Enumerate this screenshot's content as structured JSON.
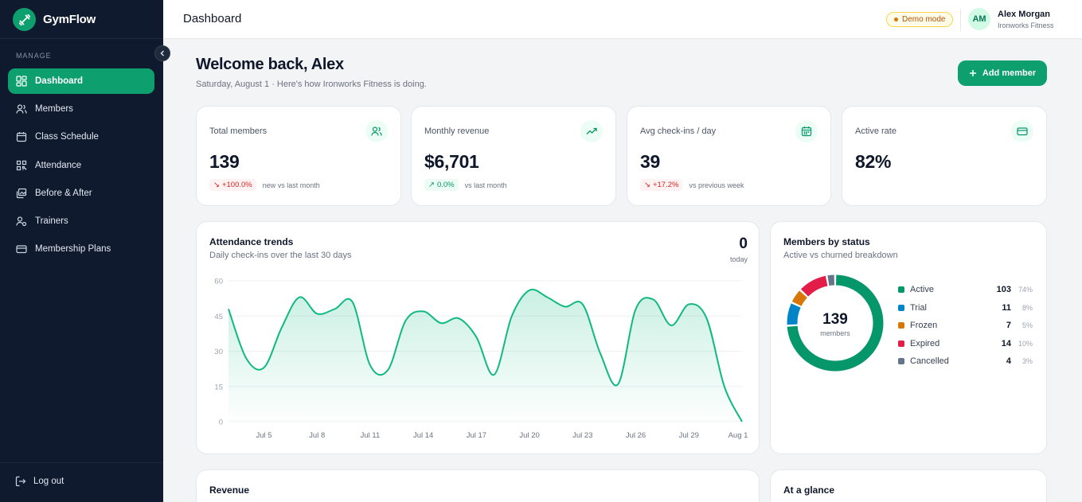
{
  "sidebar": {
    "brand": "GymFlow",
    "section_label": "MANAGE",
    "items": [
      {
        "label": "Dashboard",
        "icon": "dashboard-icon",
        "active": true
      },
      {
        "label": "Members",
        "icon": "users-icon",
        "active": false
      },
      {
        "label": "Class Schedule",
        "icon": "calendar-icon",
        "active": false
      },
      {
        "label": "Attendance",
        "icon": "qr-code-icon",
        "active": false
      },
      {
        "label": "Before & After",
        "icon": "images-icon",
        "active": false
      },
      {
        "label": "Trainers",
        "icon": "trainer-icon",
        "active": false
      },
      {
        "label": "Membership Plans",
        "icon": "credit-card-icon",
        "active": false
      }
    ],
    "logout_label": "Log out"
  },
  "header": {
    "title": "Dashboard",
    "demo_badge": "Demo mode",
    "user_initials": "AM",
    "user_name": "Alex Morgan",
    "user_org": "Ironworks Fitness"
  },
  "main": {
    "welcome": "Welcome back, Alex",
    "subtitle": "Saturday, August 1 · Here's how Ironworks Fitness is doing.",
    "add_member_label": "Add member"
  },
  "stats": [
    {
      "label": "Total members",
      "value": "139",
      "delta": "+100.0%",
      "direction": "down",
      "note": "new vs last month",
      "icon": "users-icon"
    },
    {
      "label": "Monthly revenue",
      "value": "$6,701",
      "delta": "0.0%",
      "direction": "up",
      "note": "vs last month",
      "icon": "trending-up-icon"
    },
    {
      "label": "Avg check-ins / day",
      "value": "39",
      "delta": "+17.2%",
      "direction": "down",
      "note": "vs previous week",
      "icon": "calendar-icon"
    },
    {
      "label": "Active rate",
      "value": "82%",
      "icon": "credit-card-icon"
    }
  ],
  "attendance": {
    "title": "Attendance trends",
    "subtitle": "Daily check-ins over the last 30 days",
    "today_value": "0",
    "today_label": "today"
  },
  "status": {
    "title": "Members by status",
    "subtitle": "Active vs churned breakdown",
    "total": "139",
    "total_label": "members"
  },
  "bottom": {
    "revenue_title": "Revenue",
    "glance_title": "At a glance"
  },
  "colors": {
    "brand": "#0e9f6e",
    "sidebar": "#0f1a2e",
    "active": "#059669",
    "trial": "#0284c7",
    "frozen": "#d97706",
    "expired": "#e11d48",
    "cancelled": "#64748b"
  },
  "chart_data": [
    {
      "type": "area",
      "x": [
        "Jul 3",
        "Jul 4",
        "Jul 5",
        "Jul 6",
        "Jul 7",
        "Jul 8",
        "Jul 9",
        "Jul 10",
        "Jul 11",
        "Jul 12",
        "Jul 13",
        "Jul 14",
        "Jul 15",
        "Jul 16",
        "Jul 17",
        "Jul 18",
        "Jul 19",
        "Jul 20",
        "Jul 21",
        "Jul 22",
        "Jul 23",
        "Jul 24",
        "Jul 25",
        "Jul 26",
        "Jul 27",
        "Jul 28",
        "Jul 29",
        "Jul 30",
        "Jul 31",
        "Aug 1"
      ],
      "values": [
        48,
        27,
        23,
        40,
        53,
        46,
        48,
        51,
        24,
        22,
        43,
        47,
        42,
        44,
        36,
        20,
        45,
        56,
        53,
        49,
        50,
        29,
        16,
        48,
        52,
        41,
        50,
        44,
        15,
        0
      ],
      "x_tick_labels": [
        "Jul 5",
        "Jul 8",
        "Jul 11",
        "Jul 14",
        "Jul 17",
        "Jul 20",
        "Jul 23",
        "Jul 26",
        "Jul 29",
        "Aug 1"
      ],
      "y_ticks": [
        0,
        15,
        30,
        45,
        60
      ],
      "ylim": [
        0,
        60
      ],
      "grid": true
    },
    {
      "type": "pie",
      "categories": [
        "Active",
        "Trial",
        "Frozen",
        "Expired",
        "Cancelled"
      ],
      "values": [
        103,
        11,
        7,
        14,
        4
      ],
      "percent_labels": [
        "74%",
        "8%",
        "5%",
        "10%",
        "3%"
      ]
    }
  ]
}
